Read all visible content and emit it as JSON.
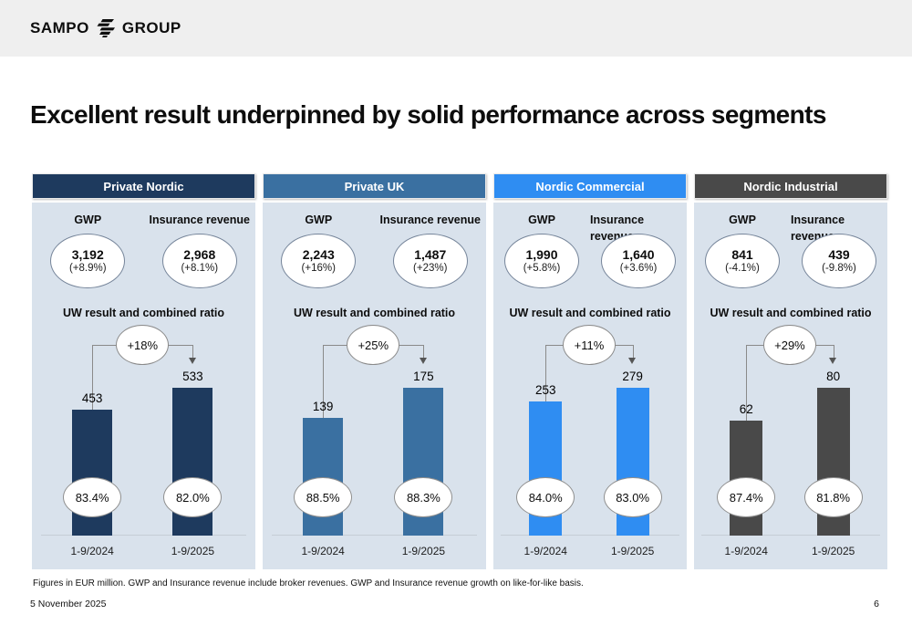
{
  "brand": {
    "left": "SAMPO",
    "right": "GROUP"
  },
  "title": "Excellent result underpinned by solid performance across segments",
  "chart_data": [
    {
      "type": "bar",
      "segment": "Private Nordic",
      "color": "#1e3a5e",
      "gwp": {
        "label": "GWP",
        "value": "3,192",
        "growth": "(+8.9%)"
      },
      "insurance_revenue": {
        "label": "Insurance revenue",
        "value": "2,968",
        "growth": "(+8.1%)"
      },
      "title": "UW result and combined ratio",
      "categories": [
        "1-9/2024",
        "1-9/2025"
      ],
      "values": [
        453,
        533
      ],
      "value_labels": [
        "453",
        "533"
      ],
      "change": "+18%",
      "combined_ratios": [
        "83.4%",
        "82.0%"
      ]
    },
    {
      "type": "bar",
      "segment": "Private UK",
      "color": "#3a70a1",
      "gwp": {
        "label": "GWP",
        "value": "2,243",
        "growth": "(+16%)"
      },
      "insurance_revenue": {
        "label": "Insurance revenue",
        "value": "1,487",
        "growth": "(+23%)"
      },
      "title": "UW result and combined ratio",
      "categories": [
        "1-9/2024",
        "1-9/2025"
      ],
      "values": [
        139,
        175
      ],
      "value_labels": [
        "139",
        "175"
      ],
      "change": "+25%",
      "combined_ratios": [
        "88.5%",
        "88.3%"
      ]
    },
    {
      "type": "bar",
      "segment": "Nordic Commercial",
      "color": "#2f8df2",
      "gwp": {
        "label": "GWP",
        "value": "1,990",
        "growth": "(+5.8%)"
      },
      "insurance_revenue": {
        "label": "Insurance revenue",
        "value": "1,640",
        "growth": "(+3.6%)"
      },
      "title": "UW result and combined ratio",
      "categories": [
        "1-9/2024",
        "1-9/2025"
      ],
      "values": [
        253,
        279
      ],
      "value_labels": [
        "253",
        "279"
      ],
      "change": "+11%",
      "combined_ratios": [
        "84.0%",
        "83.0%"
      ]
    },
    {
      "type": "bar",
      "segment": "Nordic Industrial",
      "color": "#494949",
      "gwp": {
        "label": "GWP",
        "value": "841",
        "growth": "(-4.1%)"
      },
      "insurance_revenue": {
        "label": "Insurance revenue",
        "value": "439",
        "growth": "(-9.8%)"
      },
      "title": "UW result and combined ratio",
      "categories": [
        "1-9/2024",
        "1-9/2025"
      ],
      "values": [
        62,
        80
      ],
      "value_labels": [
        "62",
        "80"
      ],
      "change": "+29%",
      "combined_ratios": [
        "87.4%",
        "81.8%"
      ]
    }
  ],
  "footnote": "Figures in EUR million. GWP and Insurance revenue include broker revenues. GWP and Insurance revenue growth on like-for-like basis.",
  "date": "5 November 2025",
  "page_number": "6"
}
